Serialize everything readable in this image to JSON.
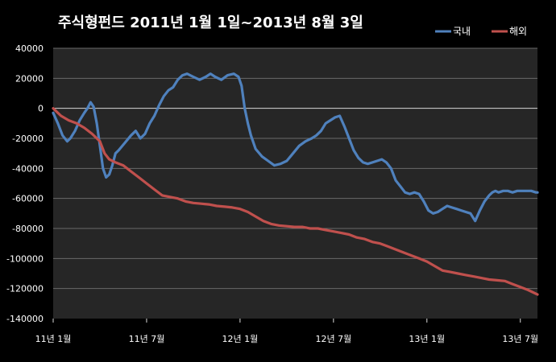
{
  "chart_data": {
    "type": "line",
    "title": "주식형펀드    2011년 1월 1일~2013년 8월 3일",
    "xlabel": "",
    "ylabel": "",
    "ylim": [
      -140000,
      40000
    ],
    "yticks": [
      40000,
      20000,
      0,
      -20000,
      -40000,
      -60000,
      -80000,
      -100000,
      -120000,
      -140000
    ],
    "xlim": [
      0,
      31.1
    ],
    "xticks": [
      {
        "x": 0,
        "label": "11년 1월"
      },
      {
        "x": 6,
        "label": "11년 7월"
      },
      {
        "x": 12,
        "label": "12년 1월"
      },
      {
        "x": 18,
        "label": "12년 7월"
      },
      {
        "x": 24,
        "label": "13년 1월"
      },
      {
        "x": 30,
        "label": "13년 7월"
      }
    ],
    "grid": true,
    "legend_position": "top-right",
    "series": [
      {
        "name": "국내",
        "color": "#4f81bd",
        "x": [
          0,
          0.3,
          0.6,
          0.9,
          1.1,
          1.4,
          1.7,
          2.0,
          2.2,
          2.4,
          2.6,
          2.8,
          3.0,
          3.2,
          3.4,
          3.6,
          3.8,
          4.0,
          4.2,
          4.6,
          5.0,
          5.3,
          5.6,
          5.9,
          6.2,
          6.5,
          6.8,
          7.1,
          7.4,
          7.7,
          8.0,
          8.3,
          8.6,
          9.0,
          9.4,
          9.8,
          10.1,
          10.4,
          10.8,
          11.2,
          11.6,
          11.9,
          12.1,
          12.3,
          12.5,
          12.7,
          13.0,
          13.4,
          13.8,
          14.2,
          14.6,
          15.0,
          15.4,
          15.8,
          16.2,
          16.6,
          16.9,
          17.2,
          17.5,
          17.8,
          18.1,
          18.4,
          18.7,
          19.0,
          19.3,
          19.6,
          19.9,
          20.2,
          20.5,
          20.8,
          21.1,
          21.4,
          21.7,
          22.0,
          22.3,
          22.6,
          22.9,
          23.2,
          23.5,
          23.8,
          24.1,
          24.4,
          24.7,
          25.0,
          25.3,
          25.6,
          25.9,
          26.2,
          26.5,
          26.8,
          27.1,
          27.4,
          27.7,
          28.0,
          28.2,
          28.4,
          28.6,
          28.9,
          29.2,
          29.5,
          29.8,
          30.1,
          30.4,
          30.7,
          31.0,
          31.1
        ],
        "values": [
          -3000,
          -10000,
          -18000,
          -22000,
          -20000,
          -15000,
          -8000,
          -3000,
          0,
          4000,
          1000,
          -10000,
          -25000,
          -40000,
          -46000,
          -44000,
          -38000,
          -30000,
          -28000,
          -23000,
          -18000,
          -15000,
          -20000,
          -17000,
          -10000,
          -5000,
          2000,
          8000,
          12000,
          14000,
          19000,
          22000,
          23000,
          21000,
          19000,
          21000,
          23000,
          21000,
          19000,
          22000,
          23000,
          21000,
          15000,
          0,
          -10000,
          -18000,
          -27000,
          -32000,
          -35000,
          -38000,
          -37000,
          -35000,
          -30000,
          -25000,
          -22000,
          -20000,
          -18000,
          -15000,
          -10000,
          -8000,
          -6000,
          -5000,
          -12000,
          -20000,
          -28000,
          -33000,
          -36000,
          -37000,
          -36000,
          -35000,
          -34000,
          -36000,
          -40000,
          -48000,
          -52000,
          -56000,
          -57000,
          -56000,
          -57000,
          -62000,
          -68000,
          -70000,
          -69000,
          -67000,
          -65000,
          -66000,
          -67000,
          -68000,
          -69000,
          -70000,
          -75000,
          -68000,
          -62000,
          -58000,
          -56000,
          -55000,
          -56000,
          -55000,
          -55000,
          -56000,
          -55000,
          -55000,
          -55000,
          -55000,
          -56000,
          -56000
        ],
        "values_note": ""
      },
      {
        "name": "해외",
        "color": "#c0504d",
        "x": [
          0,
          0.5,
          1.0,
          1.5,
          2.0,
          2.5,
          3.0,
          3.3,
          3.6,
          4.0,
          4.5,
          5.0,
          5.5,
          6.0,
          6.5,
          7.0,
          7.5,
          8.0,
          8.5,
          9.0,
          9.5,
          10.0,
          10.5,
          11.0,
          11.5,
          12.0,
          12.5,
          13.0,
          13.5,
          14.0,
          14.5,
          15.0,
          15.5,
          16.0,
          16.5,
          17.0,
          17.5,
          18.0,
          18.5,
          19.0,
          19.5,
          20.0,
          20.5,
          21.0,
          21.5,
          22.0,
          22.5,
          23.0,
          23.5,
          24.0,
          24.5,
          25.0,
          25.5,
          26.0,
          26.5,
          27.0,
          27.5,
          28.0,
          28.5,
          29.0,
          29.5,
          30.0,
          30.5,
          31.1
        ],
        "values": [
          0,
          -5000,
          -8000,
          -10000,
          -13000,
          -17000,
          -22000,
          -30000,
          -34000,
          -36000,
          -38000,
          -42000,
          -46000,
          -50000,
          -54000,
          -58000,
          -59000,
          -60000,
          -62000,
          -63000,
          -63500,
          -64000,
          -65000,
          -65500,
          -66000,
          -67000,
          -69000,
          -72000,
          -75000,
          -77000,
          -78000,
          -78500,
          -79000,
          -79000,
          -80000,
          -80000,
          -81000,
          -82000,
          -83000,
          -84000,
          -86000,
          -87000,
          -89000,
          -90000,
          -92000,
          -94000,
          -96000,
          -98000,
          -100000,
          -102000,
          -105000,
          -108000,
          -109000,
          -110000,
          -111000,
          -112000,
          -113000,
          -114000,
          -114500,
          -115000,
          -117000,
          -119000,
          -121000,
          -124000
        ]
      }
    ]
  }
}
